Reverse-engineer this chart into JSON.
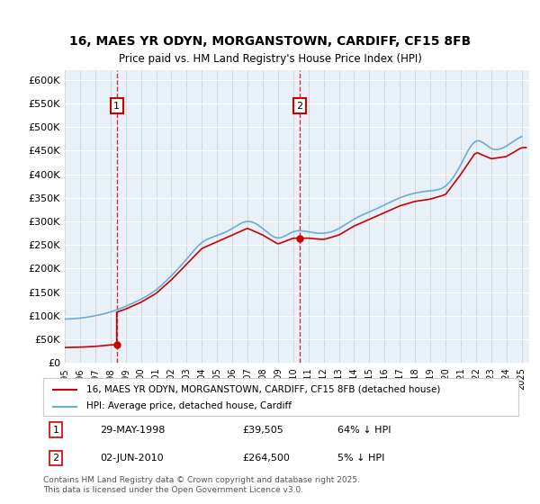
{
  "title": "16, MAES YR ODYN, MORGANSTOWN, CARDIFF, CF15 8FB",
  "subtitle": "Price paid vs. HM Land Registry's House Price Index (HPI)",
  "ylabel": "",
  "xlabel": "",
  "ylim": [
    0,
    620000
  ],
  "yticks": [
    0,
    50000,
    100000,
    150000,
    200000,
    250000,
    300000,
    350000,
    400000,
    450000,
    500000,
    550000,
    600000
  ],
  "ytick_labels": [
    "£0",
    "£50K",
    "£100K",
    "£150K",
    "£200K",
    "£250K",
    "£300K",
    "£350K",
    "£400K",
    "£450K",
    "£500K",
    "£550K",
    "£600K"
  ],
  "xlim_start": 1995.0,
  "xlim_end": 2025.5,
  "sale1_x": 1998.41,
  "sale1_y": 39505,
  "sale1_label": "1",
  "sale1_date": "29-MAY-1998",
  "sale1_price": "£39,505",
  "sale1_hpi": "64% ↓ HPI",
  "sale2_x": 2010.42,
  "sale2_y": 264500,
  "sale2_label": "2",
  "sale2_date": "02-JUN-2010",
  "sale2_price": "£264,500",
  "sale2_hpi": "5% ↓ HPI",
  "hpi_color": "#6dacd6",
  "sale_color": "#cc0000",
  "vline_color": "#cc0000",
  "legend_label_sale": "16, MAES YR ODYN, MORGANSTOWN, CARDIFF, CF15 8FB (detached house)",
  "legend_label_hpi": "HPI: Average price, detached house, Cardiff",
  "footer": "Contains HM Land Registry data © Crown copyright and database right 2025.\nThis data is licensed under the Open Government Licence v3.0.",
  "background_color": "#e8f0f8",
  "plot_bg": "#e8f0f8"
}
